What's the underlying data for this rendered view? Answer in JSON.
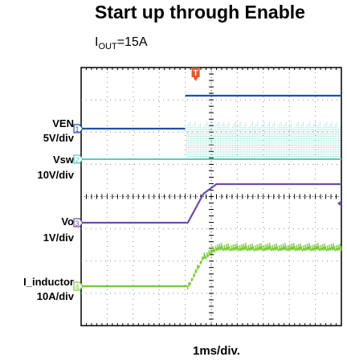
{
  "chart_data": {
    "type": "line",
    "title": "Start up through Enable",
    "annotation": {
      "prefix": "I",
      "sub": "OUT",
      "suffix": "=15A"
    },
    "xlabel": "1ms/div.",
    "x_unit": "ms",
    "xlim": [
      0,
      10
    ],
    "grid": true,
    "trigger_marker": "T",
    "trigger_x": 4.0,
    "channels": [
      {
        "id": "1",
        "label_main": "VEN",
        "label_scale": "5V/div",
        "color": "#1f4fa8",
        "state": "enable step"
      },
      {
        "id": "2",
        "label_main": "Vsw",
        "label_scale": "10V/div",
        "color": "#5ecbb6",
        "state": "switching after enable"
      },
      {
        "id": "3",
        "label_main": "Vo",
        "label_scale": "1V/div",
        "color": "#6a4fa6",
        "state": "soft-start ramp"
      },
      {
        "id": "4",
        "label_main": "I_inductor",
        "label_scale": "10A/div",
        "color": "#7ccb3c",
        "state": "ramp with ripple"
      }
    ],
    "series": [
      {
        "name": "VEN",
        "x": [
          0,
          4.0,
          4.0,
          10
        ],
        "y": [
          0,
          0,
          5,
          5
        ]
      },
      {
        "name": "Vo",
        "x": [
          0,
          4.1,
          4.7,
          5.2,
          10
        ],
        "y": [
          0,
          0,
          0.9,
          1.2,
          1.2
        ]
      },
      {
        "name": "I_inductor",
        "x": [
          0,
          4.1,
          4.7,
          5.2,
          10
        ],
        "y": [
          0,
          0,
          10,
          15,
          15
        ]
      }
    ]
  }
}
